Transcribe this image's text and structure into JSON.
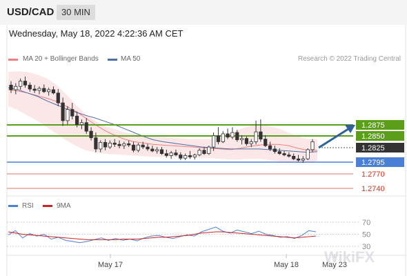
{
  "header": {
    "symbol": "USD/CAD",
    "timeframe": "30 MIN"
  },
  "datetime": "Wednesday, May 18, 2022 4:22:36 AM CET",
  "legend": {
    "ma20_label": "MA 20 + Bollinger Bands",
    "ma50_label": "MA 50"
  },
  "credit": "Research © 2022 Trading Central",
  "rsi_legend": {
    "rsi_label": "RSI",
    "ma_label": "9MA"
  },
  "colors": {
    "ma20": "#f08080",
    "ma50": "#4a6fa5",
    "resistance": "#5a9e1a",
    "support_blue": "#4a7fd6",
    "support_red": "#e07060",
    "current": "#333333",
    "bb_fill": "#fbe4e4",
    "candle": "#333333"
  },
  "watermark": "WikiFX",
  "chart_data": [
    {
      "type": "candlestick",
      "title": "",
      "ylim": [
        1.2728,
        1.2962
      ],
      "x_labels": [
        "May 17",
        "May 18",
        "May 23"
      ],
      "levels": [
        {
          "value": 1.2875,
          "label": "1.2875",
          "kind": "resistance"
        },
        {
          "value": 1.285,
          "label": "1.2850",
          "kind": "resistance"
        },
        {
          "value": 1.2825,
          "label": "1.2825",
          "kind": "current"
        },
        {
          "value": 1.2795,
          "label": "1.2795",
          "kind": "support"
        },
        {
          "value": 1.277,
          "label": "1.2770",
          "kind": "support"
        },
        {
          "value": 1.274,
          "label": "1.2740",
          "kind": "support"
        }
      ],
      "candles": [
        [
          1.2912,
          1.2918,
          1.29,
          1.2905
        ],
        [
          1.2905,
          1.2915,
          1.2898,
          1.291
        ],
        [
          1.291,
          1.2922,
          1.2905,
          1.2918
        ],
        [
          1.2918,
          1.2925,
          1.2908,
          1.2912
        ],
        [
          1.2912,
          1.2916,
          1.2902,
          1.2906
        ],
        [
          1.2906,
          1.2912,
          1.29,
          1.2904
        ],
        [
          1.2904,
          1.291,
          1.2898,
          1.2907
        ],
        [
          1.2907,
          1.2913,
          1.29,
          1.2902
        ],
        [
          1.2902,
          1.2908,
          1.2896,
          1.2905
        ],
        [
          1.2905,
          1.291,
          1.2898,
          1.29
        ],
        [
          1.29,
          1.2906,
          1.288,
          1.2885
        ],
        [
          1.2885,
          1.2893,
          1.285,
          1.2858
        ],
        [
          1.2858,
          1.288,
          1.2852,
          1.2875
        ],
        [
          1.2875,
          1.2885,
          1.286,
          1.2865
        ],
        [
          1.2865,
          1.2872,
          1.2848,
          1.2852
        ],
        [
          1.2852,
          1.286,
          1.2845,
          1.2855
        ],
        [
          1.2855,
          1.2862,
          1.2838,
          1.2842
        ],
        [
          1.2842,
          1.2848,
          1.2828,
          1.2832
        ],
        [
          1.2832,
          1.284,
          1.281,
          1.2815
        ],
        [
          1.2815,
          1.2828,
          1.281,
          1.2825
        ],
        [
          1.2825,
          1.283,
          1.2813,
          1.2818
        ],
        [
          1.2818,
          1.2828,
          1.2815,
          1.2824
        ],
        [
          1.2824,
          1.283,
          1.2818,
          1.2822
        ],
        [
          1.2822,
          1.2828,
          1.2816,
          1.282
        ],
        [
          1.282,
          1.2826,
          1.2815,
          1.2823
        ],
        [
          1.2823,
          1.2828,
          1.2818,
          1.2821
        ],
        [
          1.2821,
          1.2826,
          1.281,
          1.2813
        ],
        [
          1.2813,
          1.2824,
          1.281,
          1.2821
        ],
        [
          1.2821,
          1.2826,
          1.2815,
          1.2818
        ],
        [
          1.2818,
          1.2823,
          1.2812,
          1.2815
        ],
        [
          1.2815,
          1.282,
          1.281,
          1.2812
        ],
        [
          1.2812,
          1.2818,
          1.2808,
          1.2814
        ],
        [
          1.2814,
          1.2818,
          1.2806,
          1.2808
        ],
        [
          1.2808,
          1.2814,
          1.2802,
          1.2805
        ],
        [
          1.2805,
          1.2812,
          1.28,
          1.2809
        ],
        [
          1.2809,
          1.2814,
          1.2804,
          1.2806
        ],
        [
          1.2806,
          1.281,
          1.2798,
          1.2801
        ],
        [
          1.2801,
          1.2808,
          1.2798,
          1.2805
        ],
        [
          1.2805,
          1.2812,
          1.28,
          1.2803
        ],
        [
          1.2803,
          1.2808,
          1.2799,
          1.2806
        ],
        [
          1.2806,
          1.2816,
          1.2804,
          1.2813
        ],
        [
          1.2813,
          1.2818,
          1.2806,
          1.2808
        ],
        [
          1.2808,
          1.282,
          1.2806,
          1.2818
        ],
        [
          1.2818,
          1.284,
          1.2812,
          1.2835
        ],
        [
          1.2835,
          1.2848,
          1.2822,
          1.2826
        ],
        [
          1.2826,
          1.2842,
          1.2824,
          1.2838
        ],
        [
          1.2838,
          1.2846,
          1.283,
          1.2833
        ],
        [
          1.2833,
          1.2848,
          1.283,
          1.284
        ],
        [
          1.284,
          1.2844,
          1.2826,
          1.2829
        ],
        [
          1.2829,
          1.2836,
          1.2822,
          1.2831
        ],
        [
          1.2831,
          1.2834,
          1.282,
          1.2823
        ],
        [
          1.2823,
          1.283,
          1.2818,
          1.2826
        ],
        [
          1.2826,
          1.2858,
          1.2822,
          1.2841
        ],
        [
          1.2841,
          1.286,
          1.2826,
          1.283
        ],
        [
          1.283,
          1.2836,
          1.2818,
          1.282
        ],
        [
          1.282,
          1.2826,
          1.2812,
          1.2815
        ],
        [
          1.2815,
          1.282,
          1.2808,
          1.2811
        ],
        [
          1.2811,
          1.2816,
          1.2806,
          1.2808
        ],
        [
          1.2808,
          1.2812,
          1.2804,
          1.2806
        ],
        [
          1.2806,
          1.281,
          1.2802,
          1.2804
        ],
        [
          1.2804,
          1.2808,
          1.2798,
          1.28
        ],
        [
          1.28,
          1.2806,
          1.2796,
          1.2798
        ],
        [
          1.2798,
          1.2804,
          1.2794,
          1.28
        ],
        [
          1.28,
          1.2816,
          1.2798,
          1.2814
        ],
        [
          1.2814,
          1.283,
          1.281,
          1.2826
        ]
      ],
      "ma20": [
        1.2905,
        1.2903,
        1.29,
        1.2896,
        1.2892,
        1.2887,
        1.288,
        1.2872,
        1.2862,
        1.2852,
        1.2843,
        1.2836,
        1.283,
        1.2826,
        1.2824,
        1.2822,
        1.2821,
        1.282,
        1.2819,
        1.2818,
        1.2817,
        1.2816,
        1.2815,
        1.2814,
        1.2816,
        1.2819,
        1.2821,
        1.2822,
        1.2822,
        1.282,
        1.2816,
        1.2813,
        1.2813
      ],
      "bb_upper": [
        1.2932,
        1.2933,
        1.2932,
        1.2928,
        1.2922,
        1.2912,
        1.2898,
        1.2882,
        1.2868,
        1.2858,
        1.285,
        1.2845,
        1.284,
        1.2838,
        1.2836,
        1.2834,
        1.2833,
        1.2832,
        1.2831,
        1.283,
        1.283,
        1.283,
        1.2832,
        1.2838,
        1.2845,
        1.285,
        1.2851,
        1.285,
        1.2846,
        1.284,
        1.2834,
        1.283,
        1.283
      ],
      "bb_lower": [
        1.288,
        1.2874,
        1.2866,
        1.2858,
        1.2848,
        1.2838,
        1.2828,
        1.282,
        1.2813,
        1.281,
        1.2808,
        1.2807,
        1.2806,
        1.2805,
        1.2804,
        1.2803,
        1.2803,
        1.2803,
        1.2802,
        1.2802,
        1.2801,
        1.2801,
        1.28,
        1.2799,
        1.2799,
        1.28,
        1.28,
        1.2798,
        1.2796,
        1.2794,
        1.2793,
        1.2794,
        1.2797
      ],
      "ma50": [
        1.2908,
        1.2905,
        1.29,
        1.2895,
        1.2888,
        1.2882,
        1.2876,
        1.2871,
        1.2866,
        1.2862,
        1.2857,
        1.2852,
        1.2846,
        1.284,
        1.2834,
        1.2829,
        1.2826,
        1.2824,
        1.2822,
        1.282,
        1.2818,
        1.2817,
        1.2816,
        1.2815,
        1.2815,
        1.2815,
        1.2815,
        1.2814,
        1.2813,
        1.2812,
        1.2811,
        1.281,
        1.2811
      ],
      "projection": {
        "from": 1.2825,
        "to": 1.2875
      }
    },
    {
      "type": "line",
      "title": "",
      "ylim": [
        20,
        80
      ],
      "y_ticks": [
        70,
        50,
        30
      ],
      "series": [
        {
          "name": "RSI",
          "values": [
            49,
            56,
            44,
            51,
            47,
            50,
            42,
            45,
            40,
            38,
            36,
            38,
            41,
            44,
            40,
            43,
            40,
            42,
            39,
            44,
            47,
            48,
            45,
            43,
            46,
            49,
            47,
            54,
            58,
            62,
            55,
            52,
            57,
            54,
            51,
            55,
            50,
            48,
            45,
            46,
            43,
            48,
            56,
            54
          ]
        },
        {
          "name": "9MA",
          "values": [
            54,
            52,
            50,
            49,
            48,
            47,
            46,
            45,
            44,
            43,
            42,
            41,
            41,
            41,
            41,
            41,
            42,
            42,
            42,
            43,
            44,
            45,
            45,
            46,
            47,
            48,
            50,
            52,
            53,
            54,
            54,
            53,
            52,
            51,
            50,
            49,
            48,
            47,
            46,
            45,
            44,
            45,
            46,
            47
          ]
        }
      ]
    }
  ]
}
